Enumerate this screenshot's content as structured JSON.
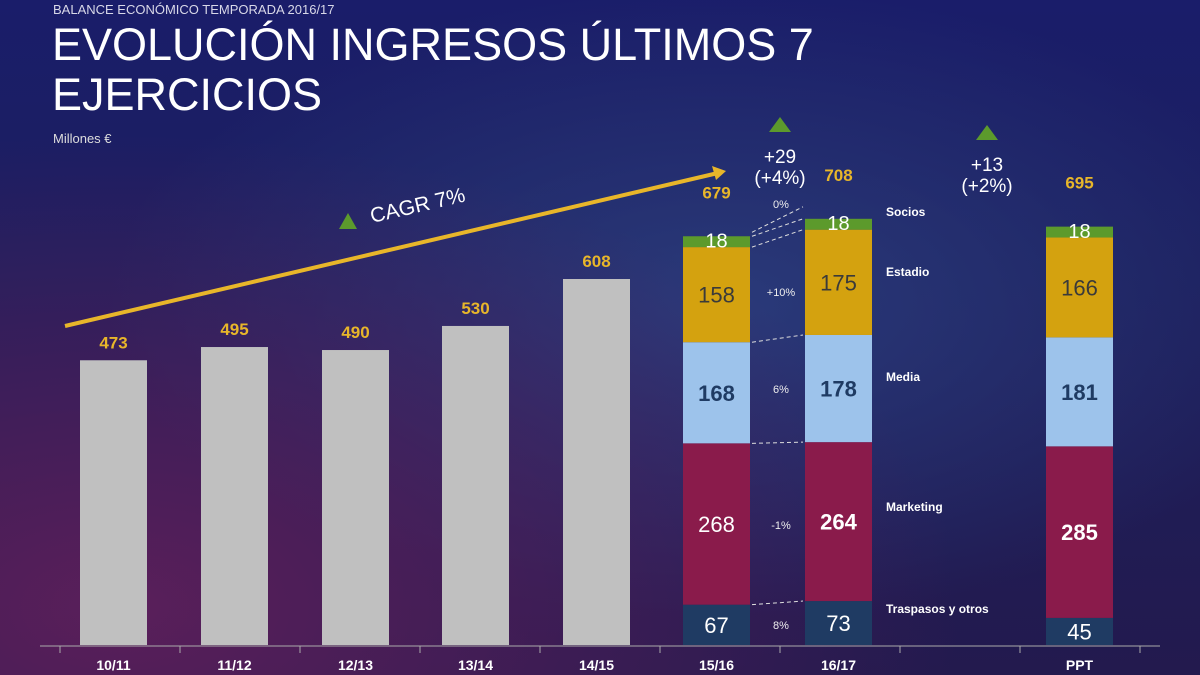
{
  "header": {
    "supertitle": "BALANCE ECONÓMICO TEMPORADA 2016/17",
    "title": "EVOLUCIÓN INGRESOS ÚLTIMOS 7 EJERCICIOS",
    "unit": "Millones €"
  },
  "chart_data": {
    "type": "bar",
    "categories": [
      "10/11",
      "11/12",
      "12/13",
      "13/14",
      "14/15",
      "15/16",
      "16/17",
      "PPT"
    ],
    "totals": [
      473,
      495,
      490,
      530,
      608,
      679,
      708,
      695
    ],
    "stack_series": [
      {
        "name": "Traspasos y otros",
        "color": "#1f3b63",
        "values": {
          "15/16": 67,
          "16/17": 73,
          "PPT": 45
        }
      },
      {
        "name": "Marketing",
        "color": "#8a1b4b",
        "values": {
          "15/16": 268,
          "16/17": 264,
          "PPT": 285
        }
      },
      {
        "name": "Media",
        "color": "#9dc3eb",
        "values": {
          "15/16": 168,
          "16/17": 178,
          "PPT": 181
        }
      },
      {
        "name": "Estadio",
        "color": "#d4a20f",
        "values": {
          "15/16": 158,
          "16/17": 175,
          "PPT": 166
        }
      },
      {
        "name": "Socios",
        "color": "#5c9a2c",
        "values": {
          "15/16": 18,
          "16/17": 18,
          "PPT": 18
        }
      }
    ],
    "segment_changes": [
      "8%",
      "-1%",
      "6%",
      "+10%",
      "0%"
    ],
    "bar_color": "#c0c0c0",
    "total_label_color": "#e8b62a",
    "cagr": "CAGR 7%",
    "deltas": [
      {
        "value": "+29",
        "pct": "(+4%)"
      },
      {
        "value": "+13",
        "pct": "(+2%)"
      }
    ]
  }
}
